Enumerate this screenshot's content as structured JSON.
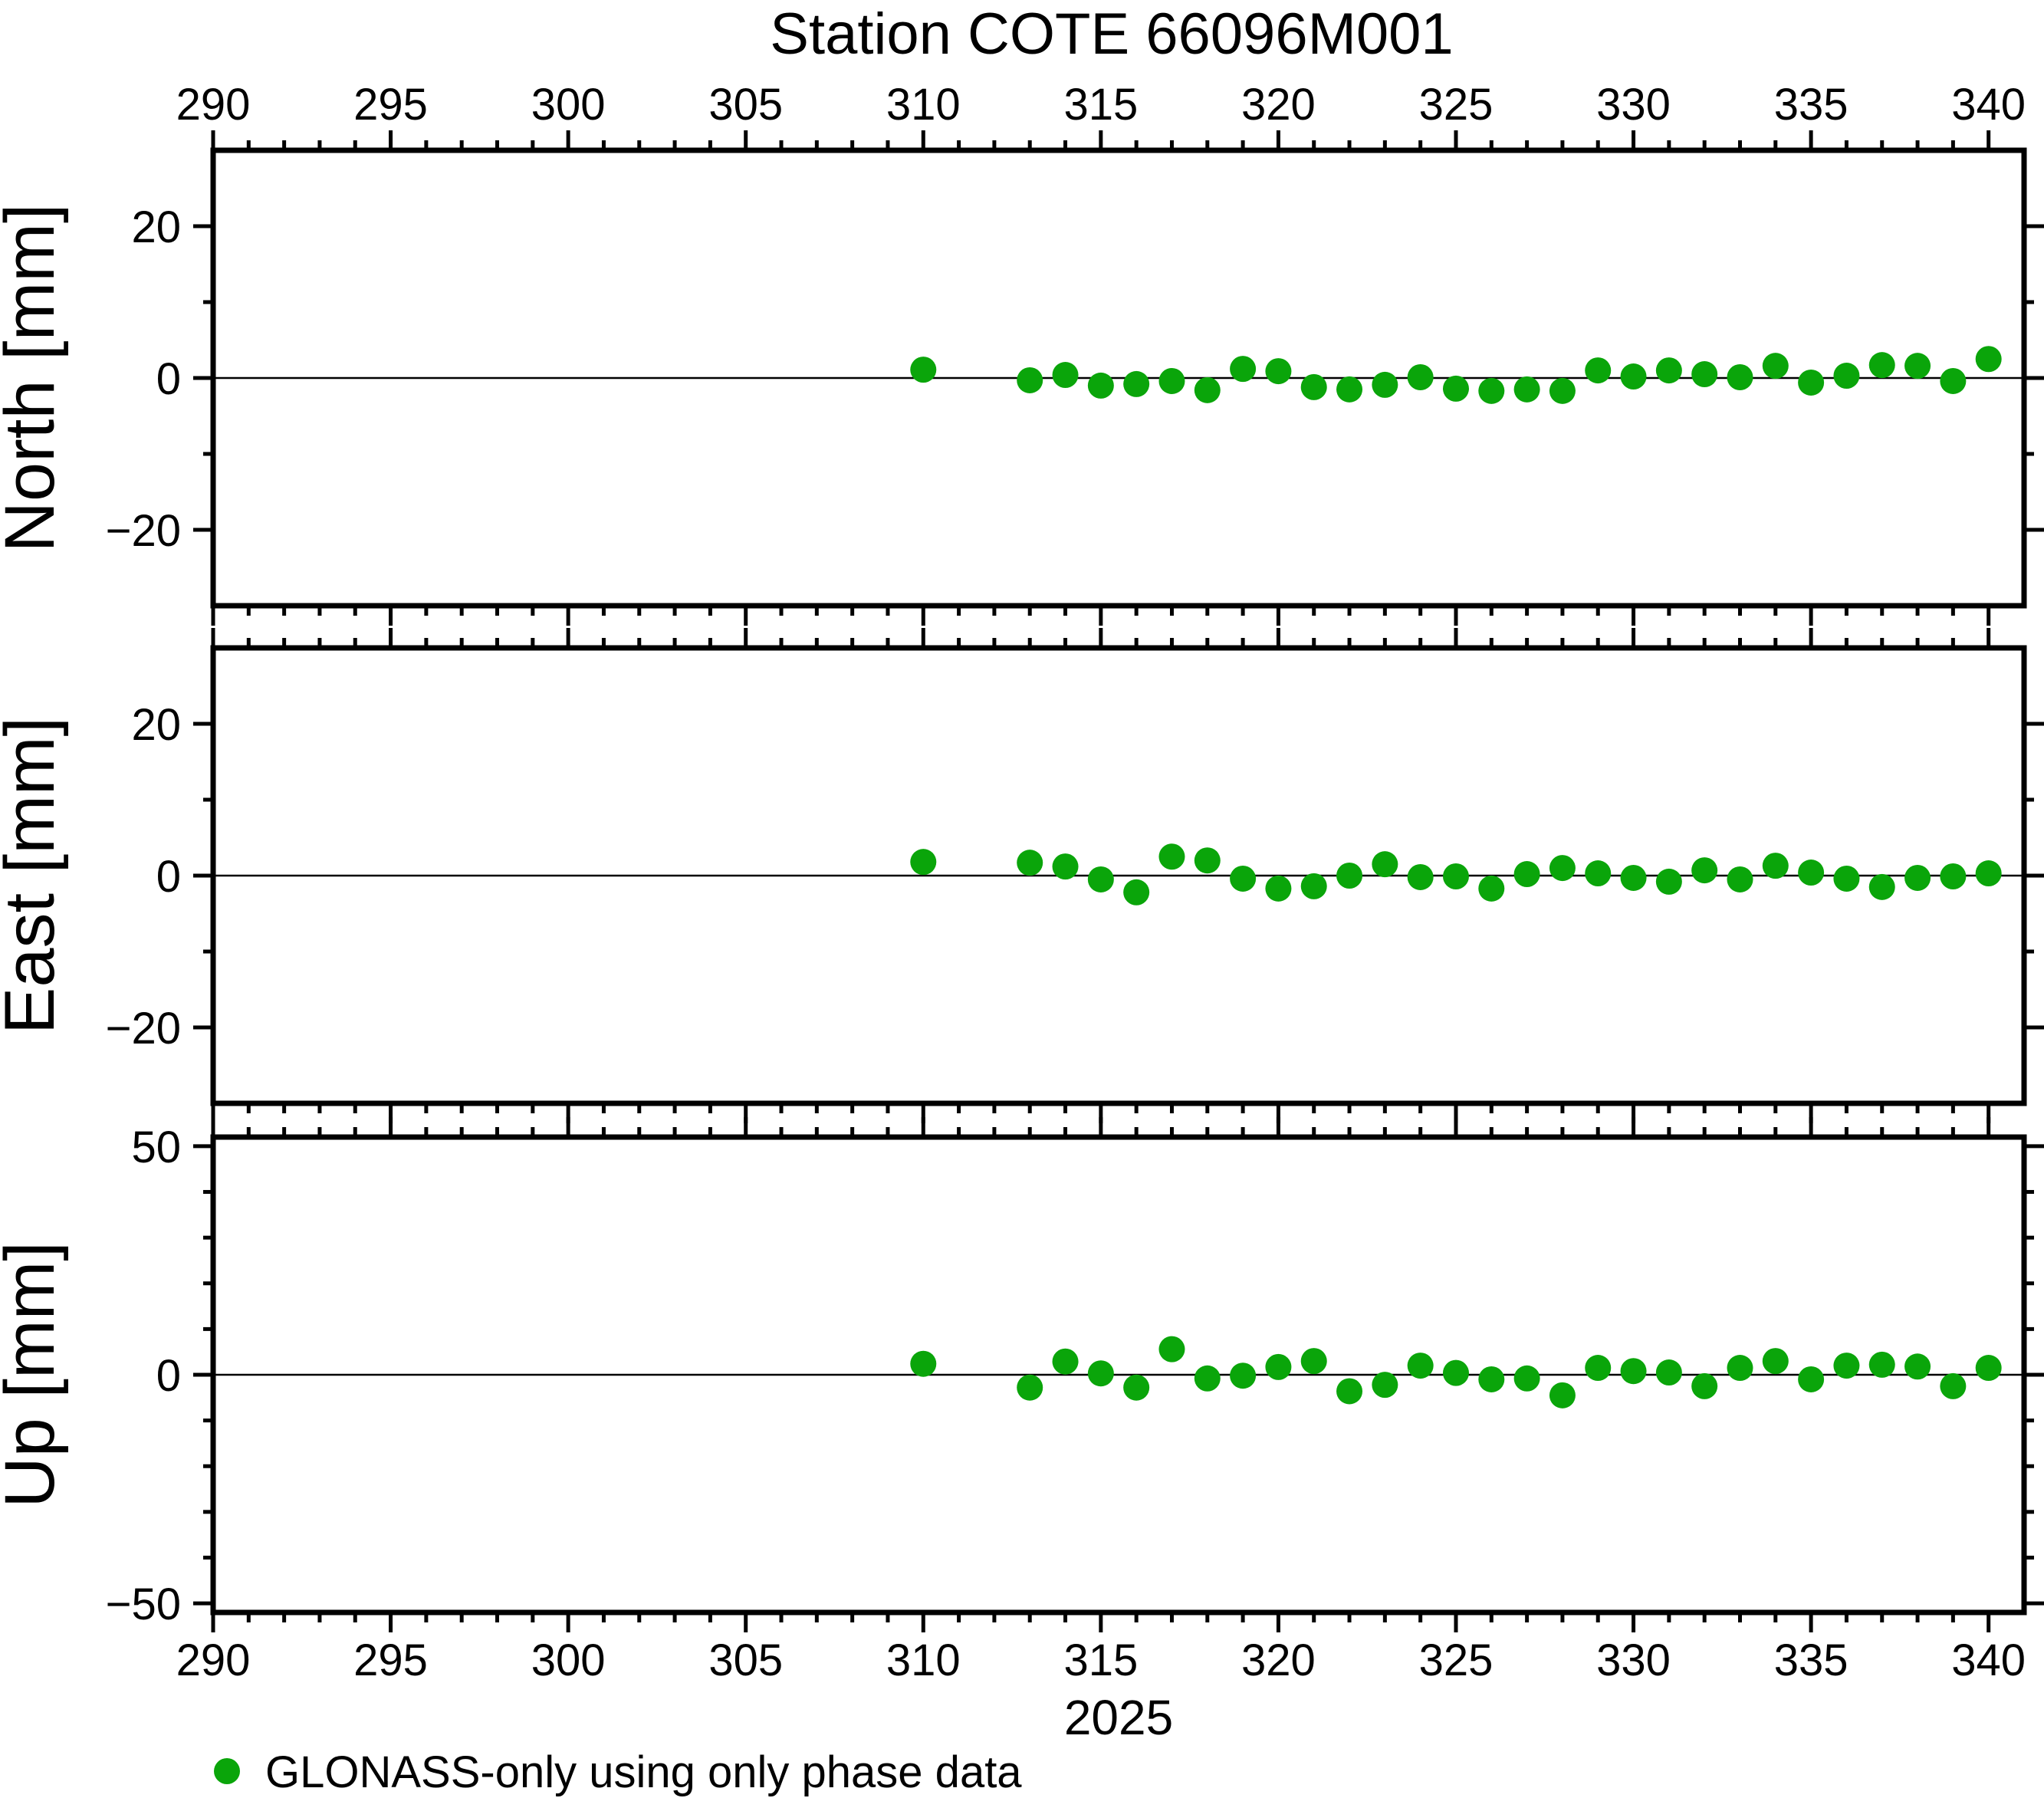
{
  "title": "Station COTE 66096M001",
  "colors": {
    "marker_green": "#0aa50a",
    "frame": "#000000"
  },
  "x_axis": {
    "year_label": "2025",
    "min": 290,
    "max": 341,
    "major_ticks": [
      290,
      295,
      300,
      305,
      310,
      315,
      320,
      325,
      330,
      335,
      340
    ],
    "minor_step": 1
  },
  "legend": {
    "label": "GLONASS-only using only phase data",
    "marker": "green-circle"
  },
  "chart_data": {
    "type": "scatter",
    "title": "Station COTE 66096M001",
    "xlabel": "2025",
    "x_units": "day of year",
    "xlim": [
      290,
      341
    ],
    "grid": "zero-line-only",
    "legend_position": "below-left",
    "legend": "GLONASS-only using only phase data",
    "marker": {
      "shape": "circle",
      "color": "#0aa50a",
      "radius_px": 17
    },
    "x_days": [
      310,
      313,
      314,
      315,
      316,
      317,
      318,
      319,
      320,
      321,
      322,
      323,
      324,
      325,
      326,
      327,
      328,
      329,
      330,
      331,
      332,
      333,
      334,
      335,
      336,
      337,
      338,
      339,
      340
    ],
    "panels": [
      {
        "ylabel": "North [mm]",
        "ylim": [
          -30,
          30
        ],
        "yticks_major": [
          -20,
          0,
          20
        ],
        "yticks_minor": [
          -10,
          10
        ],
        "values": [
          1.1,
          -0.3,
          0.4,
          -1.0,
          -0.8,
          -0.4,
          -1.6,
          1.2,
          0.9,
          -1.2,
          -1.5,
          -0.9,
          0.1,
          -1.4,
          -1.7,
          -1.5,
          -1.7,
          1.0,
          0.2,
          1.0,
          0.5,
          0.1,
          1.6,
          -0.6,
          0.3,
          1.7,
          1.6,
          -0.4,
          2.5
        ]
      },
      {
        "ylabel": "East [mm]",
        "ylim": [
          -30,
          30
        ],
        "yticks_major": [
          -20,
          0,
          20
        ],
        "yticks_minor": [
          -10,
          10
        ],
        "values": [
          1.8,
          1.7,
          1.2,
          -0.5,
          -2.2,
          2.5,
          2.0,
          -0.4,
          -1.7,
          -1.4,
          0.0,
          1.5,
          -0.2,
          -0.1,
          -1.7,
          0.2,
          1.0,
          0.3,
          -0.3,
          -0.8,
          0.7,
          -0.5,
          1.3,
          0.4,
          -0.4,
          -1.5,
          -0.3,
          -0.1,
          0.3
        ]
      },
      {
        "ylabel": "Up [mm]",
        "ylim": [
          -52,
          52
        ],
        "yticks_major": [
          -50,
          0,
          50
        ],
        "yticks_minor": [
          -40,
          -30,
          -20,
          -10,
          10,
          20,
          30,
          40
        ],
        "values": [
          2.4,
          -2.8,
          2.9,
          0.3,
          -2.8,
          5.6,
          -0.8,
          -0.2,
          1.7,
          3.0,
          -3.6,
          -2.2,
          2.0,
          0.4,
          -1.0,
          -0.8,
          -4.5,
          1.5,
          0.8,
          0.5,
          -2.5,
          1.5,
          3.0,
          -1.0,
          2.0,
          2.2,
          1.8,
          -2.5,
          1.5
        ]
      }
    ]
  }
}
